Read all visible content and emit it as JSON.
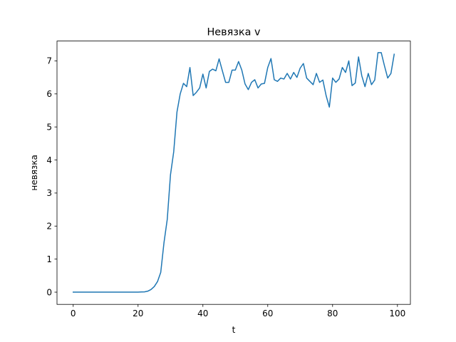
{
  "chart_data": {
    "type": "line",
    "title": "Невязка v",
    "xlabel": "t",
    "ylabel": "невязка",
    "xlim": [
      -5,
      104
    ],
    "ylim": [
      -0.37,
      7.6
    ],
    "grid": false,
    "legend": "none",
    "line_color": "#1f77b4",
    "xticks": [
      {
        "value": 0,
        "label": "0"
      },
      {
        "value": 20,
        "label": "20"
      },
      {
        "value": 40,
        "label": "40"
      },
      {
        "value": 60,
        "label": "60"
      },
      {
        "value": 80,
        "label": "80"
      },
      {
        "value": 100,
        "label": "100"
      }
    ],
    "yticks": [
      {
        "value": 0,
        "label": "0"
      },
      {
        "value": 1,
        "label": "1"
      },
      {
        "value": 2,
        "label": "2"
      },
      {
        "value": 3,
        "label": "3"
      },
      {
        "value": 4,
        "label": "4"
      },
      {
        "value": 5,
        "label": "5"
      },
      {
        "value": 6,
        "label": "6"
      },
      {
        "value": 7,
        "label": "7"
      }
    ],
    "series": [
      {
        "x": [
          0,
          1,
          2,
          3,
          4,
          5,
          6,
          7,
          8,
          9,
          10,
          11,
          12,
          13,
          14,
          15,
          16,
          17,
          18,
          19,
          20,
          21,
          22,
          23,
          24,
          25,
          26,
          27,
          28,
          29,
          30,
          31,
          32,
          33,
          34,
          35,
          36,
          37,
          38,
          39,
          40,
          41,
          42,
          43,
          44,
          45,
          46,
          47,
          48,
          49,
          50,
          51,
          52,
          53,
          54,
          55,
          56,
          57,
          58,
          59,
          60,
          61,
          62,
          63,
          64,
          65,
          66,
          67,
          68,
          69,
          70,
          71,
          72,
          73,
          74,
          75,
          76,
          77,
          78,
          79,
          80,
          81,
          82,
          83,
          84,
          85,
          86,
          87,
          88,
          89,
          90,
          91,
          92,
          93,
          94,
          95,
          96,
          97,
          98,
          99
        ],
        "y": [
          0,
          0,
          0,
          0,
          0,
          0,
          0,
          0,
          0,
          0,
          0,
          0,
          0,
          0,
          0,
          0,
          0,
          0,
          0,
          0,
          0,
          0.005,
          0.01,
          0.03,
          0.08,
          0.17,
          0.32,
          0.6,
          1.5,
          2.2,
          3.55,
          4.25,
          5.45,
          6.0,
          6.32,
          6.22,
          6.8,
          5.95,
          6.05,
          6.18,
          6.6,
          6.18,
          6.68,
          6.75,
          6.7,
          7.06,
          6.7,
          6.35,
          6.35,
          6.72,
          6.72,
          6.98,
          6.72,
          6.3,
          6.13,
          6.35,
          6.43,
          6.18,
          6.3,
          6.32,
          6.8,
          7.07,
          6.43,
          6.38,
          6.48,
          6.45,
          6.62,
          6.45,
          6.65,
          6.5,
          6.78,
          6.92,
          6.48,
          6.38,
          6.28,
          6.62,
          6.35,
          6.42,
          5.95,
          5.6,
          6.48,
          6.35,
          6.45,
          6.8,
          6.65,
          7.0,
          6.25,
          6.33,
          7.12,
          6.55,
          6.22,
          6.62,
          6.28,
          6.42,
          7.25,
          7.25,
          6.85,
          6.48,
          6.62,
          7.2
        ]
      }
    ]
  }
}
